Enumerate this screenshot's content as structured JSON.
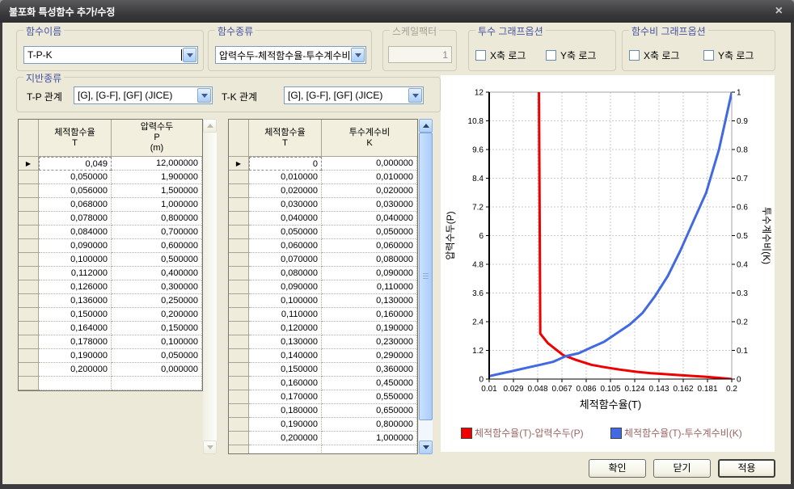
{
  "window": {
    "title": "불포화 특성함수 추가/수정"
  },
  "icons": {
    "close": "×",
    "row_marker": "▶",
    "combo_arrow": "chevron-down",
    "scroll_up": "chevron-up",
    "scroll_down": "chevron-down"
  },
  "function_name": {
    "label": "함수이름",
    "value": "T-P-K"
  },
  "function_type": {
    "label": "함수종류",
    "value": "압력수두-체적함수율-투수계수비"
  },
  "scale_factor": {
    "label": "스케일팩터",
    "value": "1"
  },
  "perm_graph_options": {
    "label": "투수 그래프옵션",
    "x_log": "X축 로그",
    "y_log": "Y축 로그",
    "x_checked": false,
    "y_checked": false
  },
  "ratio_graph_options": {
    "label": "함수비 그래프옵션",
    "x_log": "X축 로그",
    "y_log": "Y축 로그",
    "x_checked": false,
    "y_checked": false
  },
  "ground_type": {
    "label": "지반종류",
    "tp_label": "T-P 관계",
    "tp_value": "[G], [G-F], [GF] (JICE)",
    "tk_label": "T-K 관계",
    "tk_value": "[G], [G-F], [GF] (JICE)"
  },
  "tp_table": {
    "headers": [
      "체적함수율\nT",
      "압력수두\nP\n(m)"
    ],
    "selected_row": 0,
    "rows": [
      [
        "0,049",
        "12,000000"
      ],
      [
        "0,050000",
        "1,900000"
      ],
      [
        "0,056000",
        "1,500000"
      ],
      [
        "0,068000",
        "1,000000"
      ],
      [
        "0,078000",
        "0,800000"
      ],
      [
        "0,084000",
        "0,700000"
      ],
      [
        "0,090000",
        "0,600000"
      ],
      [
        "0,100000",
        "0,500000"
      ],
      [
        "0,112000",
        "0,400000"
      ],
      [
        "0,126000",
        "0,300000"
      ],
      [
        "0,136000",
        "0,250000"
      ],
      [
        "0,150000",
        "0,200000"
      ],
      [
        "0,164000",
        "0,150000"
      ],
      [
        "0,178000",
        "0,100000"
      ],
      [
        "0,190000",
        "0,050000"
      ],
      [
        "0,200000",
        "0,000000"
      ]
    ]
  },
  "tk_table": {
    "headers": [
      "체적함수율\nT",
      "투수계수비\nK"
    ],
    "selected_row": 0,
    "rows": [
      [
        "0",
        "0,000000"
      ],
      [
        "0,010000",
        "0,010000"
      ],
      [
        "0,020000",
        "0,020000"
      ],
      [
        "0,030000",
        "0,030000"
      ],
      [
        "0,040000",
        "0,040000"
      ],
      [
        "0,050000",
        "0,050000"
      ],
      [
        "0,060000",
        "0,060000"
      ],
      [
        "0,070000",
        "0,080000"
      ],
      [
        "0,080000",
        "0,090000"
      ],
      [
        "0,090000",
        "0,110000"
      ],
      [
        "0,100000",
        "0,130000"
      ],
      [
        "0,110000",
        "0,160000"
      ],
      [
        "0,120000",
        "0,190000"
      ],
      [
        "0,130000",
        "0,230000"
      ],
      [
        "0,140000",
        "0,290000"
      ],
      [
        "0,150000",
        "0,360000"
      ],
      [
        "0,160000",
        "0,450000"
      ],
      [
        "0,170000",
        "0,550000"
      ],
      [
        "0,180000",
        "0,650000"
      ],
      [
        "0,190000",
        "0,800000"
      ],
      [
        "0,200000",
        "1,000000"
      ]
    ]
  },
  "chart_data": {
    "type": "line",
    "xlabel": "체적함수율(T)",
    "ylabel_left": "압력수두(P)",
    "ylabel_right": "투수계수비(K)",
    "xlim": [
      0.01,
      0.2
    ],
    "ylim_left": [
      0,
      12
    ],
    "ylim_right": [
      0,
      1
    ],
    "xticks": [
      "0.01",
      "0.029",
      "0.048",
      "0.067",
      "0.086",
      "0.105",
      "0.124",
      "0.143",
      "0.162",
      "0.181",
      "0.2"
    ],
    "yticks_left": [
      "0",
      "1.2",
      "2.4",
      "3.6",
      "4.8",
      "6",
      "7.2",
      "8.4",
      "9.6",
      "10.8",
      "12"
    ],
    "yticks_right": [
      "0",
      "0.1",
      "0.2",
      "0.3",
      "0.4",
      "0.5",
      "0.6",
      "0.7",
      "0.8",
      "0.9",
      "1"
    ],
    "grid": true,
    "series": [
      {
        "name": "체적함수율(T)-압력수두(P)",
        "color": "#ee0000",
        "axis": "left",
        "x": [
          0.049,
          0.05,
          0.056,
          0.068,
          0.078,
          0.084,
          0.09,
          0.1,
          0.112,
          0.126,
          0.136,
          0.15,
          0.164,
          0.178,
          0.19,
          0.2
        ],
        "y": [
          12,
          1.9,
          1.5,
          1.0,
          0.8,
          0.7,
          0.6,
          0.5,
          0.4,
          0.3,
          0.25,
          0.2,
          0.15,
          0.1,
          0.05,
          0
        ]
      },
      {
        "name": "체적함수율(T)-투수계수비(K)",
        "color": "#4169e1",
        "axis": "right",
        "x": [
          0,
          0.01,
          0.02,
          0.03,
          0.04,
          0.05,
          0.06,
          0.07,
          0.08,
          0.09,
          0.1,
          0.11,
          0.12,
          0.13,
          0.14,
          0.15,
          0.16,
          0.17,
          0.18,
          0.19,
          0.2
        ],
        "y": [
          0,
          0.01,
          0.02,
          0.03,
          0.04,
          0.05,
          0.06,
          0.08,
          0.09,
          0.11,
          0.13,
          0.16,
          0.19,
          0.23,
          0.29,
          0.36,
          0.45,
          0.55,
          0.65,
          0.8,
          1.0
        ]
      }
    ]
  },
  "legend": [
    {
      "label": "체적함수율(T)-압력수두(P)",
      "color": "#ee0000"
    },
    {
      "label": "체적함수율(T)-투수계수비(K)",
      "color": "#4169e1"
    }
  ],
  "buttons": {
    "ok": "확인",
    "close": "닫기",
    "apply": "적용"
  },
  "colors": {
    "dialog_bg": "#ECE9D8",
    "titlebar": "#3c3c3e",
    "group_label": "#44549f",
    "legend_text": "#9a6464"
  }
}
